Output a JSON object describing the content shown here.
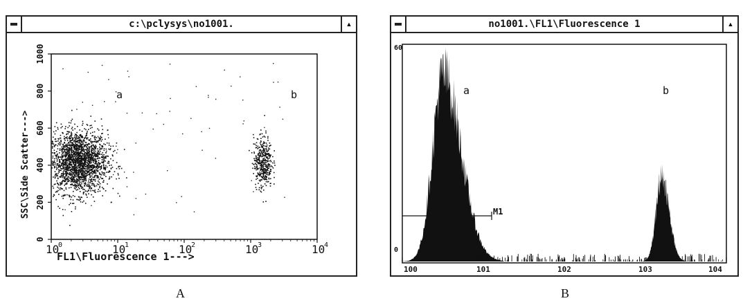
{
  "window_a": {
    "title": "c:\\pclysys\\no1001.",
    "y_axis_label": "SSC\\Side Scatter--->",
    "x_axis_label": "FL1\\Fluorescence 1--->",
    "y_ticks": [
      "0",
      "200",
      "400",
      "600",
      "800",
      "1000"
    ],
    "x_tick_bases": [
      "10",
      "10",
      "10",
      "10",
      "10"
    ],
    "x_tick_exps": [
      "0",
      "1",
      "2",
      "3",
      "4"
    ],
    "population_a": "a",
    "population_b": "b",
    "panel_label": "A"
  },
  "window_b": {
    "title": "no1001.\\FL1\\Fluorescence 1",
    "y_top_label": "60",
    "y_zero_label": "0",
    "x_tick_labels": [
      "100",
      "101",
      "102",
      "103",
      "104"
    ],
    "marker_label": "M1",
    "population_a": "a",
    "population_b": "b",
    "panel_label": "B"
  },
  "chart_data": [
    {
      "type": "scatter",
      "title": "",
      "xlabel": "FL1\\Fluorescence 1--->",
      "ylabel": "SSC\\Side Scatter--->",
      "x_scale": "log",
      "xlim": [
        1,
        10000
      ],
      "ylim": [
        0,
        1000
      ],
      "clusters": [
        {
          "name": "a",
          "center_x": 2.5,
          "center_y": 420,
          "spread": "large"
        },
        {
          "name": "b",
          "center_x": 1500,
          "center_y": 420,
          "spread": "small"
        }
      ]
    },
    {
      "type": "area",
      "title": "",
      "x_scale": "log",
      "xlim": [
        1,
        10000
      ],
      "ylim": [
        0,
        60
      ],
      "peaks": [
        {
          "name": "a",
          "x": 3.2,
          "height": 55
        },
        {
          "name": "b",
          "x": 1600,
          "height": 25
        }
      ],
      "marker": {
        "name": "M1",
        "x_start": 1,
        "x_end": 20
      }
    }
  ]
}
